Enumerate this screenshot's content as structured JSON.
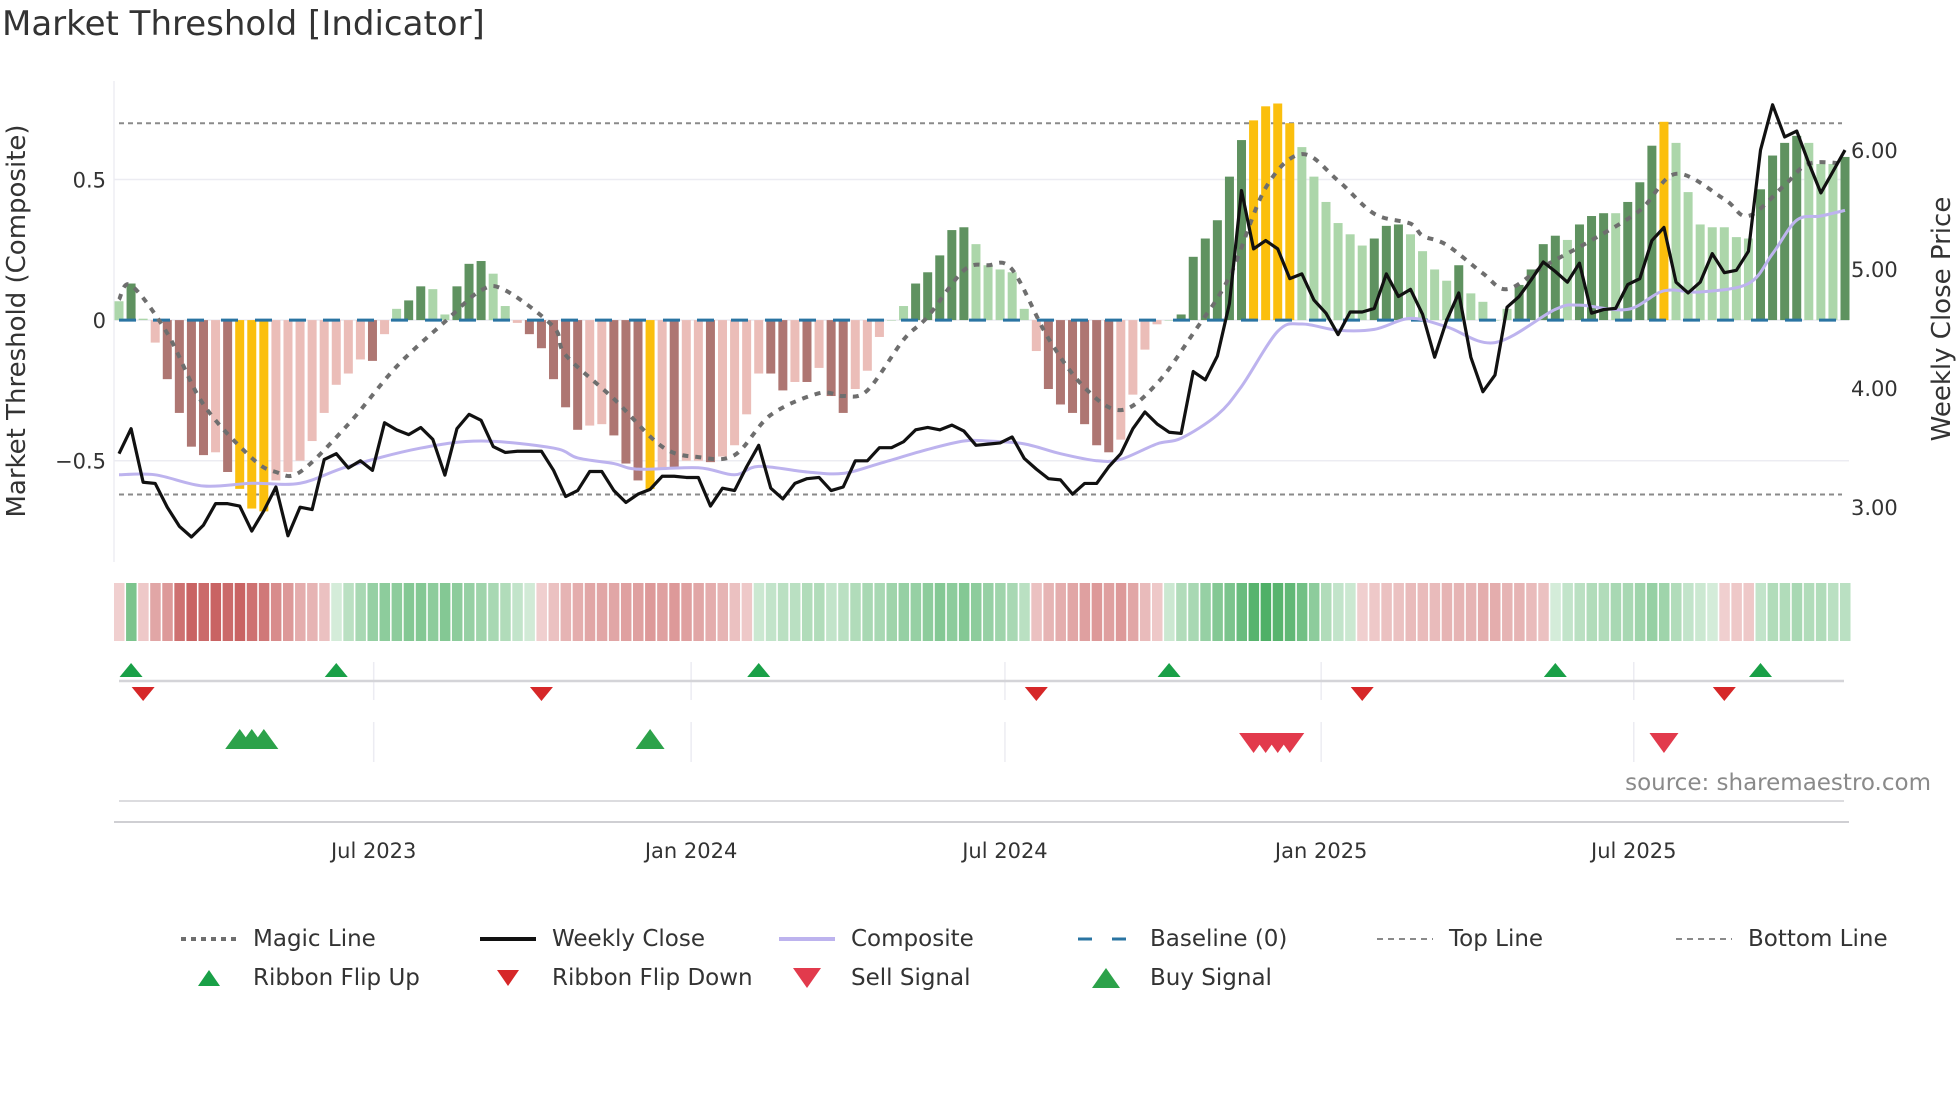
{
  "title": "Market Threshold [Indicator]",
  "source_note": "source: sharemaestro.com",
  "colors": {
    "bar_dark_green": "#5f9260",
    "bar_light_green": "#acd6aa",
    "bar_dark_red": "#ae7672",
    "bar_light_red": "#ebbdb8",
    "bar_extreme": "#fbbf0d",
    "weekly_close": "#111111",
    "composite": "#bdb3ee",
    "magic_line": "#6e6e6e",
    "baseline": "#2a74a2",
    "threshold_lines": "#8a8a8a",
    "ribbon_flip_up": "#19a047",
    "ribbon_flip_down": "#d62728",
    "buy_signal": "#2ca24a",
    "sell_signal": "#e23a4c"
  },
  "chart_data": {
    "type": "bar",
    "title": "Market Threshold [Indicator]",
    "ylabel_left": "Market Threshold (Composite)",
    "ylabel_right": "Weekly Close Price",
    "ylim_left": [
      -0.86,
      0.85
    ],
    "ylim_right": [
      2.54,
      6.58
    ],
    "left_ticks": [
      {
        "value": 0.5,
        "label": "0.5"
      },
      {
        "value": 0,
        "label": "0"
      },
      {
        "value": -0.5,
        "label": "−0.5"
      }
    ],
    "right_ticks": [
      {
        "value": 6,
        "label": "6.00"
      },
      {
        "value": 5,
        "label": "5.00"
      },
      {
        "value": 4,
        "label": "4.00"
      },
      {
        "value": 3,
        "label": "3.00"
      }
    ],
    "x_ticks": [
      {
        "week": 21.1,
        "label": "Jul 2023"
      },
      {
        "week": 47.4,
        "label": "Jan 2024"
      },
      {
        "week": 73.4,
        "label": "Jul 2024"
      },
      {
        "week": 99.6,
        "label": "Jan 2025"
      },
      {
        "week": 125.5,
        "label": "Jul 2025"
      }
    ],
    "top_line": 0.7,
    "bottom_line": -0.62,
    "baseline": 0,
    "grid": true,
    "legend_placement": "bottom",
    "bar_state_key": {
      "G": "strong positive",
      "g": "weak positive",
      "R": "strong negative",
      "r": "weak negative",
      "Y": "extreme"
    },
    "bar_values": [
      0.067,
      0.13,
      0.005,
      -0.08,
      -0.21,
      -0.33,
      -0.45,
      -0.48,
      -0.47,
      -0.54,
      -0.6,
      -0.67,
      -0.68,
      -0.57,
      -0.54,
      -0.5,
      -0.43,
      -0.33,
      -0.23,
      -0.19,
      -0.14,
      -0.145,
      -0.05,
      0.04,
      0.07,
      0.12,
      0.11,
      0.02,
      0.12,
      0.2,
      0.21,
      0.165,
      0.05,
      -0.01,
      -0.05,
      -0.1,
      -0.21,
      -0.31,
      -0.39,
      -0.375,
      -0.37,
      -0.41,
      -0.51,
      -0.57,
      -0.6,
      -0.53,
      -0.53,
      -0.5,
      -0.5,
      -0.505,
      -0.485,
      -0.445,
      -0.335,
      -0.19,
      -0.19,
      -0.25,
      -0.22,
      -0.22,
      -0.17,
      -0.27,
      -0.33,
      -0.245,
      -0.18,
      -0.06,
      0.0,
      0.05,
      0.13,
      0.17,
      0.23,
      0.32,
      0.33,
      0.27,
      0.195,
      0.18,
      0.17,
      0.04,
      -0.11,
      -0.245,
      -0.3,
      -0.33,
      -0.37,
      -0.445,
      -0.47,
      -0.425,
      -0.265,
      -0.105,
      -0.015,
      0.0,
      0.02,
      0.225,
      0.29,
      0.355,
      0.51,
      0.64,
      0.71,
      0.76,
      0.77,
      0.7,
      0.615,
      0.51,
      0.42,
      0.345,
      0.305,
      0.265,
      0.29,
      0.335,
      0.34,
      0.305,
      0.245,
      0.18,
      0.14,
      0.195,
      0.095,
      0.065,
      0.0,
      0.04,
      0.125,
      0.18,
      0.27,
      0.3,
      0.285,
      0.34,
      0.37,
      0.38,
      0.38,
      0.42,
      0.49,
      0.62,
      0.705,
      0.63,
      0.455,
      0.34,
      0.33,
      0.33,
      0.295,
      0.29,
      0.465,
      0.585,
      0.63,
      0.655,
      0.63,
      0.555,
      0.555,
      0.58
    ],
    "bar_states": "gGgrRRRRrRYYYrrrrrrrrRrgGGggGGGggrRRRRRrrRRRYrRrrRrrrrRRrRrRRrrrggGGGGGgggggrRRRRRRrrrrgGGGGGGYYYYggggggGGGggggGggggGGGGgGGGgGGGYgggggggGGGGgggG",
    "weekly_close": [
      3.45,
      3.66,
      3.21,
      3.2,
      3.0,
      2.84,
      2.75,
      2.85,
      3.03,
      3.03,
      3.01,
      2.8,
      2.97,
      3.17,
      2.76,
      3.0,
      2.98,
      3.4,
      3.45,
      3.33,
      3.39,
      3.31,
      3.71,
      3.65,
      3.61,
      3.67,
      3.57,
      3.27,
      3.66,
      3.78,
      3.73,
      3.51,
      3.46,
      3.47,
      3.47,
      3.47,
      3.31,
      3.09,
      3.14,
      3.3,
      3.3,
      3.14,
      3.04,
      3.11,
      3.15,
      3.26,
      3.26,
      3.25,
      3.25,
      3.01,
      3.16,
      3.14,
      3.34,
      3.52,
      3.16,
      3.07,
      3.2,
      3.24,
      3.25,
      3.14,
      3.17,
      3.39,
      3.39,
      3.5,
      3.5,
      3.55,
      3.65,
      3.67,
      3.65,
      3.69,
      3.64,
      3.52,
      3.53,
      3.54,
      3.59,
      3.41,
      3.32,
      3.24,
      3.23,
      3.11,
      3.2,
      3.2,
      3.34,
      3.45,
      3.66,
      3.8,
      3.7,
      3.63,
      3.62,
      4.14,
      4.07,
      4.27,
      4.71,
      5.66,
      5.17,
      5.24,
      5.17,
      4.92,
      4.96,
      4.74,
      4.63,
      4.45,
      4.64,
      4.64,
      4.67,
      4.96,
      4.77,
      4.83,
      4.62,
      4.26,
      4.57,
      4.8,
      4.26,
      3.97,
      4.11,
      4.68,
      4.77,
      4.91,
      5.06,
      4.98,
      4.89,
      5.05,
      4.63,
      4.66,
      4.67,
      4.87,
      4.92,
      5.24,
      5.35,
      4.89,
      4.8,
      4.89,
      5.13,
      4.97,
      4.99,
      5.15,
      6.0,
      6.38,
      6.11,
      6.16,
      5.89,
      5.64,
      5.82,
      6.0
    ],
    "composite_points": [
      [
        1,
        -0.55
      ],
      [
        4,
        -0.55
      ],
      [
        8,
        -0.59
      ],
      [
        12,
        -0.58
      ],
      [
        16,
        -0.58
      ],
      [
        20,
        -0.52
      ],
      [
        26,
        -0.455
      ],
      [
        31,
        -0.43
      ],
      [
        37,
        -0.455
      ],
      [
        39,
        -0.49
      ],
      [
        42,
        -0.51
      ],
      [
        44,
        -0.53
      ],
      [
        49,
        -0.525
      ],
      [
        52,
        -0.55
      ],
      [
        54,
        -0.52
      ],
      [
        58,
        -0.54
      ],
      [
        61,
        -0.545
      ],
      [
        64,
        -0.51
      ],
      [
        68,
        -0.46
      ],
      [
        71,
        -0.43
      ],
      [
        73,
        -0.43
      ],
      [
        76,
        -0.44
      ],
      [
        79,
        -0.475
      ],
      [
        82,
        -0.5
      ],
      [
        84,
        -0.495
      ],
      [
        87,
        -0.44
      ],
      [
        89,
        -0.42
      ],
      [
        92,
        -0.337
      ],
      [
        94,
        -0.236
      ],
      [
        97,
        -0.04
      ],
      [
        99,
        -0.014
      ],
      [
        102,
        -0.036
      ],
      [
        105,
        -0.033
      ],
      [
        108,
        0.006
      ],
      [
        111,
        -0.024
      ],
      [
        115,
        -0.08
      ],
      [
        120,
        0.038
      ],
      [
        122,
        0.053
      ],
      [
        126,
        0.038
      ],
      [
        129,
        0.104
      ],
      [
        132,
        0.1
      ],
      [
        136,
        0.13
      ],
      [
        138,
        0.236
      ],
      [
        140,
        0.355
      ],
      [
        142,
        0.37
      ],
      [
        144,
        0.39
      ]
    ],
    "magic_points": [
      [
        1,
        0.073
      ],
      [
        2,
        0.124
      ],
      [
        5,
        -0.047
      ],
      [
        8,
        -0.3
      ],
      [
        12,
        -0.49
      ],
      [
        14,
        -0.54
      ],
      [
        16,
        -0.54
      ],
      [
        20,
        -0.37
      ],
      [
        24,
        -0.165
      ],
      [
        28,
        -0.006
      ],
      [
        31,
        0.106
      ],
      [
        33,
        0.106
      ],
      [
        37,
        -0.024
      ],
      [
        38,
        -0.124
      ],
      [
        42,
        -0.28
      ],
      [
        46,
        -0.45
      ],
      [
        49,
        -0.487
      ],
      [
        52,
        -0.48
      ],
      [
        55,
        -0.337
      ],
      [
        59,
        -0.26
      ],
      [
        61,
        -0.27
      ],
      [
        63,
        -0.25
      ],
      [
        66,
        -0.07
      ],
      [
        68,
        0.012
      ],
      [
        71,
        0.177
      ],
      [
        73,
        0.195
      ],
      [
        75,
        0.18
      ],
      [
        78,
        -0.065
      ],
      [
        81,
        -0.24
      ],
      [
        84,
        -0.32
      ],
      [
        87,
        -0.225
      ],
      [
        90,
        -0.047
      ],
      [
        93,
        0.154
      ],
      [
        96,
        0.47
      ],
      [
        99,
        0.59
      ],
      [
        102,
        0.496
      ],
      [
        105,
        0.378
      ],
      [
        108,
        0.343
      ],
      [
        109,
        0.3
      ],
      [
        111,
        0.267
      ],
      [
        114,
        0.166
      ],
      [
        116,
        0.11
      ],
      [
        119,
        0.19
      ],
      [
        123,
        0.284
      ],
      [
        127,
        0.39
      ],
      [
        130,
        0.52
      ],
      [
        134,
        0.43
      ],
      [
        136,
        0.37
      ],
      [
        139,
        0.48
      ],
      [
        141,
        0.556
      ],
      [
        144,
        0.556
      ]
    ],
    "ribbon_strength": [
      -0.1,
      0.6,
      -0.15,
      -0.4,
      -0.5,
      -0.8,
      -0.9,
      -0.85,
      -0.9,
      -0.85,
      -0.9,
      -0.8,
      -0.75,
      -0.6,
      -0.5,
      -0.35,
      -0.3,
      -0.2,
      0.1,
      0.25,
      0.35,
      0.45,
      0.5,
      0.5,
      0.55,
      0.55,
      0.5,
      0.55,
      0.5,
      0.45,
      0.4,
      0.35,
      0.3,
      0.2,
      0.12,
      -0.1,
      -0.2,
      -0.3,
      -0.35,
      -0.4,
      -0.4,
      -0.4,
      -0.45,
      -0.45,
      -0.5,
      -0.45,
      -0.5,
      -0.45,
      -0.4,
      -0.35,
      -0.3,
      -0.2,
      -0.15,
      0.15,
      0.2,
      0.25,
      0.25,
      0.3,
      0.3,
      0.2,
      0.25,
      0.3,
      0.35,
      0.35,
      0.4,
      0.45,
      0.45,
      0.5,
      0.55,
      0.5,
      0.55,
      0.5,
      0.45,
      0.4,
      0.35,
      0.25,
      -0.2,
      -0.3,
      -0.35,
      -0.4,
      -0.45,
      -0.5,
      -0.45,
      -0.5,
      -0.4,
      -0.25,
      -0.15,
      0.15,
      0.3,
      0.35,
      0.45,
      0.55,
      0.6,
      0.7,
      0.8,
      0.85,
      0.8,
      0.75,
      0.65,
      0.5,
      0.3,
      0.2,
      0.15,
      -0.1,
      -0.15,
      -0.2,
      -0.2,
      -0.25,
      -0.25,
      -0.25,
      -0.3,
      -0.3,
      -0.3,
      -0.35,
      -0.35,
      -0.3,
      -0.3,
      -0.25,
      -0.2,
      0.1,
      0.2,
      0.25,
      0.3,
      0.3,
      0.35,
      0.35,
      0.4,
      0.45,
      0.4,
      0.3,
      0.2,
      0.15,
      0.1,
      -0.1,
      -0.15,
      -0.15,
      0.2,
      0.3,
      0.3,
      0.35,
      0.3,
      0.3,
      0.25,
      0.25
    ],
    "ribbon_flip_up_weeks": [
      2,
      19,
      54,
      88,
      120,
      137
    ],
    "ribbon_flip_down_weeks": [
      3,
      36,
      77,
      104,
      134
    ],
    "buy_signal_weeks": [
      11,
      12,
      13,
      45
    ],
    "sell_signal_weeks": [
      95,
      96,
      97,
      98,
      129
    ]
  },
  "legend": [
    {
      "label": "Magic Line",
      "symbol": "dotted-line"
    },
    {
      "label": "Weekly Close",
      "symbol": "solid-line"
    },
    {
      "label": "Composite",
      "symbol": "lavender-line"
    },
    {
      "label": "Baseline (0)",
      "symbol": "dashed-blue-line"
    },
    {
      "label": "Top Line",
      "symbol": "thin-dashed-line"
    },
    {
      "label": "Bottom Line",
      "symbol": "thin-dashed-line"
    },
    {
      "label": "Ribbon Flip Up",
      "symbol": "triangle-up"
    },
    {
      "label": "Ribbon Flip Down",
      "symbol": "triangle-down"
    },
    {
      "label": "Sell Signal",
      "symbol": "triangle-down-large"
    },
    {
      "label": "Buy Signal",
      "symbol": "triangle-up-large"
    }
  ]
}
